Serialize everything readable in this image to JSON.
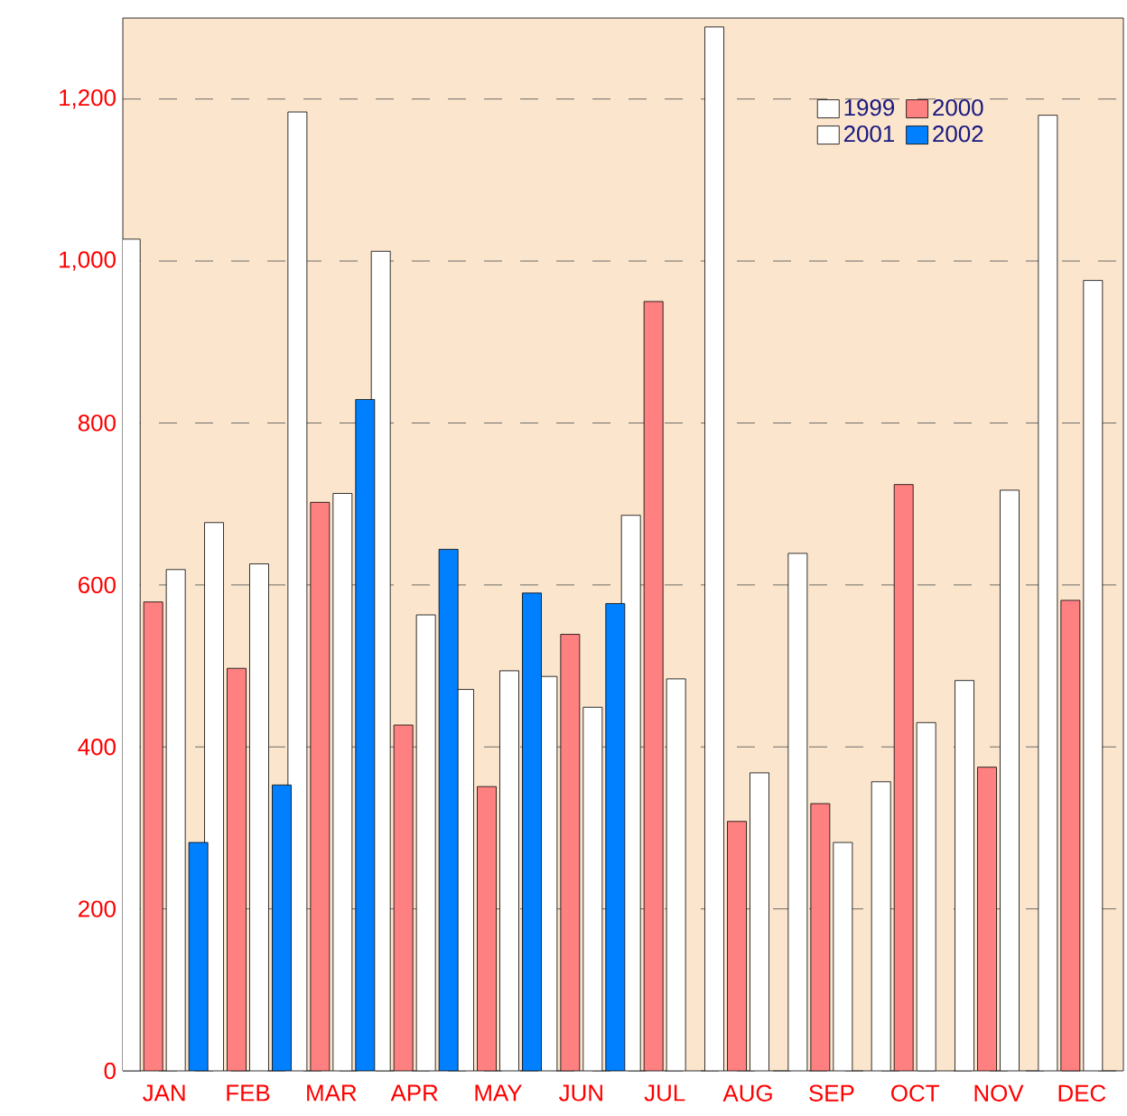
{
  "chart_data": {
    "type": "bar",
    "categories": [
      "JAN",
      "FEB",
      "MAR",
      "APR",
      "MAY",
      "JUN",
      "JUL",
      "AUG",
      "SEP",
      "OCT",
      "NOV",
      "DEC"
    ],
    "series": [
      {
        "name": "1999",
        "color": "#ffffff",
        "values": [
          1027,
          677,
          1184,
          1012,
          471,
          487,
          686,
          1289,
          639,
          357,
          482,
          1180
        ]
      },
      {
        "name": "2000",
        "color": "#ff8080",
        "values": [
          579,
          497,
          702,
          427,
          351,
          539,
          950,
          308,
          330,
          724,
          375,
          581
        ]
      },
      {
        "name": "2001",
        "color": "#ffffff",
        "values": [
          619,
          626,
          713,
          563,
          494,
          449,
          484,
          368,
          282,
          430,
          717,
          976
        ]
      },
      {
        "name": "2002",
        "color": "#0080ff",
        "values": [
          282,
          353,
          829,
          644,
          590,
          577,
          null,
          null,
          null,
          null,
          null,
          null
        ]
      }
    ],
    "ylim": [
      0,
      1300
    ],
    "yticks": [
      0,
      200,
      400,
      600,
      800,
      {
        "value": 1000,
        "label": "1,000"
      },
      {
        "value": 1200,
        "label": "1,200"
      }
    ],
    "grid": "y",
    "legend": "top right"
  }
}
